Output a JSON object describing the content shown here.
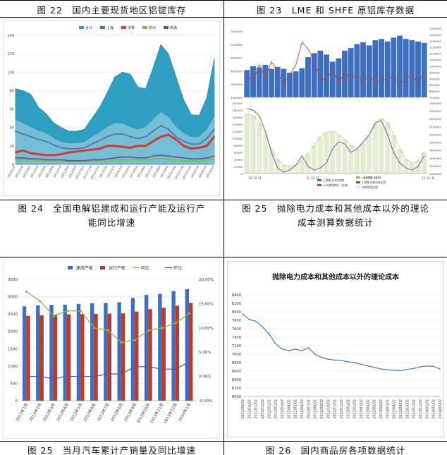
{
  "captions": {
    "fig22": "图 22　国内主要现货地区铝锭库存",
    "fig23": "图 23　LME 和 SHFE 原铝库存数据",
    "fig24_line1": "图 24　全国电解铝建成和运行产能及运行产",
    "fig24_line2": "能同比增速",
    "fig25a_line1": "图 25　抛除电力成本和其他成本以外的理论",
    "fig25a_line2": "成本测算数据统计",
    "fig25b": "图 25　当月汽车累计产销量及同比增速",
    "fig26": "图 26　国内商品房各项数据统计"
  },
  "chart_data": [
    {
      "id": "fig22",
      "type": "area",
      "legend": [
        "合计",
        "上海",
        "无锡",
        "杭州",
        "南海"
      ],
      "legend_placement": "top",
      "y_ticks": [
        "0",
        "20",
        "40",
        "60",
        "80",
        "100",
        "120",
        "140"
      ],
      "ylim": [
        0,
        140
      ],
      "x_ticks": [
        "2012/1/4",
        "2012/2/4",
        "2012/3/4",
        "2012/4/4",
        "2012/5/4",
        "2012/6/4",
        "2012/7/4",
        "2012/8/4",
        "2012/9/4",
        "2012/10/4",
        "2012/11/4",
        "2012/12/4",
        "2013/1/4",
        "2013/2/4",
        "2013/3/4",
        "2013/4/4",
        "2013/5/4",
        "2013/6/4",
        "2013/7/4",
        "2013/8/4",
        "2013/9/4",
        "2013/10/4",
        "2013/11/4",
        "2013/12/4",
        "2014/1/4",
        "2014/2/4",
        "2014/3/4"
      ],
      "series": [
        {
          "name": "合计",
          "color": "#2e9fc0",
          "values": [
            82,
            80,
            76,
            62,
            55,
            45,
            40,
            36,
            36,
            38,
            50,
            62,
            78,
            95,
            100,
            98,
            84,
            82,
            105,
            130,
            120,
            95,
            70,
            54,
            53,
            72,
            115
          ]
        },
        {
          "name": "上海",
          "color": "#4a6fb5",
          "values": [
            36,
            33,
            30,
            27,
            25,
            21,
            18,
            17,
            17,
            18,
            22,
            26,
            30,
            33,
            33,
            30,
            28,
            30,
            36,
            42,
            38,
            30,
            25,
            22,
            22,
            28,
            38
          ]
        },
        {
          "name": "无锡",
          "color": "#d23a2a",
          "values": [
            13,
            15,
            12,
            11,
            10,
            10,
            11,
            13,
            14,
            15,
            16,
            17,
            20,
            20,
            19,
            18,
            20,
            20,
            25,
            30,
            32,
            27,
            20,
            17,
            18,
            20,
            30
          ]
        },
        {
          "name": "杭州",
          "color": "#8ab83a",
          "values": [
            5,
            5,
            5,
            4,
            4,
            4,
            3,
            3,
            3,
            3,
            4,
            4,
            5,
            5,
            5,
            5,
            5,
            5,
            6,
            6,
            6,
            5,
            4,
            4,
            4,
            5,
            6
          ]
        },
        {
          "name": "南海",
          "color": "#6b4da0",
          "values": [
            7,
            7,
            6,
            6,
            5,
            5,
            5,
            4,
            4,
            4,
            5,
            5,
            6,
            7,
            8,
            8,
            7,
            7,
            9,
            10,
            9,
            8,
            7,
            6,
            6,
            7,
            9
          ]
        }
      ]
    },
    {
      "id": "fig23",
      "type": "bar",
      "top": {
        "y_left_ticks": [
          "5400000",
          "5200000",
          "5000000",
          "4800000",
          "4600000",
          "4400000"
        ],
        "y_right_ticks": [
          "1300000",
          "1250000",
          "1200000",
          "1150000",
          "1100000",
          "1050000",
          "1000000",
          "950000",
          "900000",
          "850000",
          "800000",
          "750000"
        ],
        "legend": [
          "上期所上市交割库",
          "LME原铝库存（右轴）"
        ],
        "series": [
          {
            "name": "上期所上市交割库",
            "color": "#3d70c0",
            "values": [
              0.42,
              0.48,
              0.46,
              0.5,
              0.44,
              0.47,
              0.44,
              0.38,
              0.4,
              0.45,
              0.62,
              0.68,
              0.72,
              0.66,
              0.55,
              0.6,
              0.72,
              0.76,
              0.82,
              0.85,
              0.8,
              0.88,
              0.9,
              0.86,
              0.92,
              0.95,
              0.9,
              0.88,
              0.86,
              0.84
            ]
          },
          {
            "name": "LME原铝库存（右轴）",
            "color": "#d23a2a",
            "values": [
              0.35,
              0.25,
              0.5,
              0.3,
              0.55,
              0.4,
              0.2,
              0.35,
              0.5,
              0.85,
              0.75,
              0.55,
              0.3,
              0.25,
              0.45,
              0.2,
              0.4,
              0.28,
              0.35,
              0.25,
              0.32,
              0.22,
              0.3,
              0.26,
              0.33,
              0.2,
              0.28,
              0.35,
              0.22,
              0.4
            ]
          }
        ]
      },
      "bottom": {
        "y_left_ticks": [
          "200000",
          "180000",
          "160000",
          "140000",
          "120000",
          "100000",
          "80000",
          "60000",
          "40000",
          "20000",
          "0"
        ],
        "y_right_ticks": [
          "2800000",
          "2600000",
          "2400000",
          "2200000",
          "2000000",
          "1800000",
          "1600000",
          "1400000",
          "1200000",
          "1000000"
        ],
        "x_ticks": [
          "10-12-31",
          "11-12-31",
          "12-12-31",
          "13-12-31"
        ],
        "legend": [
          "LME库存（右轴）",
          "上期所注销仓单比例",
          "仓库库存比例"
        ],
        "series": [
          {
            "name": "LME库存（右轴）",
            "color": "#8fbb4a",
            "values": [
              0.85,
              0.82,
              0.72,
              0.55,
              0.35,
              0.2,
              0.12,
              0.1,
              0.12,
              0.18,
              0.28,
              0.4,
              0.52,
              0.58,
              0.6,
              0.55,
              0.48,
              0.4,
              0.35,
              0.42,
              0.55,
              0.7,
              0.78,
              0.72,
              0.55,
              0.35,
              0.2,
              0.15,
              0.18,
              0.3
            ]
          },
          {
            "name": "上期所注销仓单比例",
            "color": "#6b4da0",
            "values": [
              0.92,
              0.9,
              0.82,
              0.6,
              0.3,
              0.08,
              0.02,
              0.05,
              0.12,
              0.25,
              0.1,
              0.05,
              0.08,
              0.15,
              0.35,
              0.45,
              0.42,
              0.3,
              0.35,
              0.45,
              0.55,
              0.72,
              0.75,
              0.55,
              0.3,
              0.15,
              0.08,
              0.05,
              0.1,
              0.25
            ]
          }
        ]
      }
    },
    {
      "id": "fig25b",
      "type": "bar",
      "legend": [
        "建成产能",
        "运行产能",
        "同比",
        "环比"
      ],
      "legend_placement": "top",
      "categories": [
        "2013年1月",
        "2013年2月",
        "2013年3月",
        "2013年4月",
        "2013年5月",
        "2013年6月",
        "2013年7月",
        "2013年8月",
        "2013年9月",
        "2013年10月",
        "2013年11月",
        "2013年12月",
        "2014年1月"
      ],
      "ylim": [
        0,
        3500
      ],
      "y_ticks": [
        "0",
        "500",
        "1000",
        "1500",
        "2000",
        "2500",
        "3000",
        "3500"
      ],
      "y2_ticks": [
        "-5.00%",
        "0.00%",
        "5.00%",
        "10.00%",
        "15.00%",
        "20.00%"
      ],
      "series": [
        {
          "name": "建成产能",
          "color": "#3d70c0",
          "values": [
            2720,
            2750,
            2760,
            2770,
            2790,
            2810,
            2820,
            2840,
            2960,
            3050,
            3080,
            3160,
            3220
          ]
        },
        {
          "name": "运行产能",
          "color": "#c0392b",
          "values": [
            2450,
            2460,
            2480,
            2490,
            2500,
            2500,
            2510,
            2520,
            2570,
            2640,
            2680,
            2740,
            2820
          ]
        },
        {
          "name": "同比",
          "color": "#8fbb3a",
          "values": [
            17.5,
            15.5,
            12.5,
            13.5,
            13.5,
            10.0,
            9.5,
            7.0,
            7.5,
            9.5,
            10.0,
            11.0,
            13.0
          ]
        },
        {
          "name": "环比",
          "color": "#6b4da0",
          "values": [
            0.0,
            0.0,
            -0.5,
            0.0,
            0.0,
            0.0,
            0.5,
            0.5,
            2.0,
            2.0,
            1.5,
            1.5,
            3.0
          ]
        }
      ]
    },
    {
      "id": "fig26",
      "type": "line",
      "title": "抛除电力成本和其他成本以外的理论成本",
      "ylim": [
        6000,
        8400
      ],
      "y_ticks": [
        "8400",
        "8200",
        "8000",
        "7800",
        "7600",
        "7400",
        "7200",
        "7000",
        "6800",
        "6600",
        "6400",
        "6200",
        "6000"
      ],
      "x_ticks": [
        "2011/09/02",
        "2011/10/02",
        "2011/11/02",
        "2011/12/02",
        "2012/01/02",
        "2012/02/02",
        "2012/03/02",
        "2012/04/02",
        "2012/05/02",
        "2012/06/02",
        "2012/07/02",
        "2012/08/02",
        "2012/09/02",
        "2012/10/02",
        "2012/11/02",
        "2012/12/02",
        "2013/01/02",
        "2013/02/02",
        "2013/03/02",
        "2013/04/02",
        "2013/05/02",
        "2013/06/02",
        "2013/07/02",
        "2013/08/02",
        "2013/09/02",
        "2013/10/02",
        "2013/11/02",
        "2013/12/02",
        "2014/01/02",
        "2014/02/02",
        "2014/03/02"
      ],
      "series": [
        {
          "name": "理论成本",
          "color": "#2e75b6",
          "values": [
            7950,
            7820,
            7780,
            7650,
            7480,
            7250,
            7120,
            7080,
            7120,
            7080,
            7150,
            7000,
            6920,
            6880,
            6860,
            6850,
            6820,
            6800,
            6760,
            6720,
            6690,
            6650,
            6630,
            6620,
            6610,
            6640,
            6660,
            6700,
            6720,
            6710,
            6650
          ]
        }
      ]
    }
  ]
}
